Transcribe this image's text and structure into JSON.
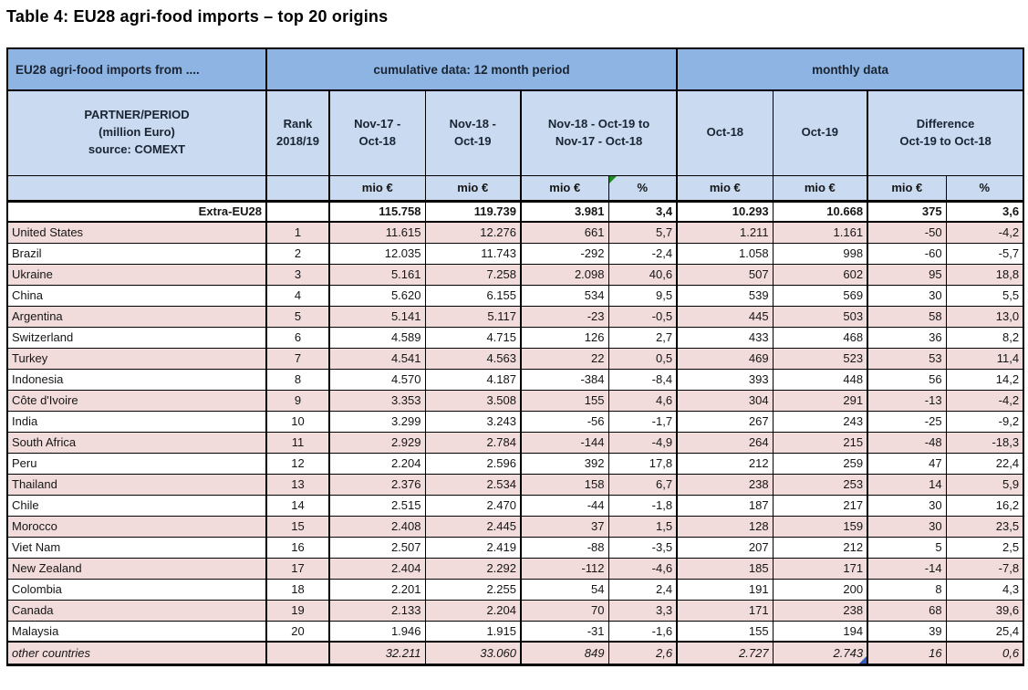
{
  "page": {
    "title": "Table 4: EU28 agri-food imports – top 20 origins"
  },
  "colors": {
    "band_blue": "#8db4e2",
    "light_blue": "#c9daf1",
    "row_pink": "#f2dcdb",
    "flag_green": "#1f8a1f",
    "flag_blue": "#2f5cbf"
  },
  "table": {
    "header": {
      "corner": "EU28 agri-food imports from ....",
      "cumulative_group": "cumulative data: 12 month period",
      "monthly_group": "monthly data",
      "partner": "PARTNER/PERIOD\n(million Euro)\nsource: COMEXT",
      "rank": "Rank\n2018/19",
      "period_1": "Nov-17 -\nOct-18",
      "period_2": "Nov-18 -\nOct-19",
      "period_diff": "Nov-18 - Oct-19 to\nNov-17 - Oct-18",
      "month_1": "Oct-18",
      "month_2": "Oct-19",
      "month_diff": "Difference\nOct-19 to Oct-18"
    },
    "units": [
      "mio €",
      "mio €",
      "mio €",
      "%",
      "mio €",
      "mio €",
      "mio €",
      "%"
    ],
    "flags": {
      "units_green_triangle_col": 3,
      "blue_triangle_row_partner": "other countries",
      "blue_triangle_col": 5
    },
    "rows": [
      {
        "partner": "Extra-EU28",
        "rank": "",
        "values": [
          "115.758",
          "119.739",
          "3.981",
          "3,4",
          "10.293",
          "10.668",
          "375",
          "3,6"
        ],
        "style": "total"
      },
      {
        "partner": "United States",
        "rank": "1",
        "values": [
          "11.615",
          "12.276",
          "661",
          "5,7",
          "1.211",
          "1.161",
          "-50",
          "-4,2"
        ],
        "style": "pink"
      },
      {
        "partner": "Brazil",
        "rank": "2",
        "values": [
          "12.035",
          "11.743",
          "-292",
          "-2,4",
          "1.058",
          "998",
          "-60",
          "-5,7"
        ],
        "style": "white"
      },
      {
        "partner": "Ukraine",
        "rank": "3",
        "values": [
          "5.161",
          "7.258",
          "2.098",
          "40,6",
          "507",
          "602",
          "95",
          "18,8"
        ],
        "style": "pink"
      },
      {
        "partner": "China",
        "rank": "4",
        "values": [
          "5.620",
          "6.155",
          "534",
          "9,5",
          "539",
          "569",
          "30",
          "5,5"
        ],
        "style": "white"
      },
      {
        "partner": "Argentina",
        "rank": "5",
        "values": [
          "5.141",
          "5.117",
          "-23",
          "-0,5",
          "445",
          "503",
          "58",
          "13,0"
        ],
        "style": "pink"
      },
      {
        "partner": "Switzerland",
        "rank": "6",
        "values": [
          "4.589",
          "4.715",
          "126",
          "2,7",
          "433",
          "468",
          "36",
          "8,2"
        ],
        "style": "white"
      },
      {
        "partner": "Turkey",
        "rank": "7",
        "values": [
          "4.541",
          "4.563",
          "22",
          "0,5",
          "469",
          "523",
          "53",
          "11,4"
        ],
        "style": "pink"
      },
      {
        "partner": "Indonesia",
        "rank": "8",
        "values": [
          "4.570",
          "4.187",
          "-384",
          "-8,4",
          "393",
          "448",
          "56",
          "14,2"
        ],
        "style": "white"
      },
      {
        "partner": "Côte d'Ivoire",
        "rank": "9",
        "values": [
          "3.353",
          "3.508",
          "155",
          "4,6",
          "304",
          "291",
          "-13",
          "-4,2"
        ],
        "style": "pink"
      },
      {
        "partner": "India",
        "rank": "10",
        "values": [
          "3.299",
          "3.243",
          "-56",
          "-1,7",
          "267",
          "243",
          "-25",
          "-9,2"
        ],
        "style": "white"
      },
      {
        "partner": "South Africa",
        "rank": "11",
        "values": [
          "2.929",
          "2.784",
          "-144",
          "-4,9",
          "264",
          "215",
          "-48",
          "-18,3"
        ],
        "style": "pink"
      },
      {
        "partner": "Peru",
        "rank": "12",
        "values": [
          "2.204",
          "2.596",
          "392",
          "17,8",
          "212",
          "259",
          "47",
          "22,4"
        ],
        "style": "white"
      },
      {
        "partner": "Thailand",
        "rank": "13",
        "values": [
          "2.376",
          "2.534",
          "158",
          "6,7",
          "238",
          "253",
          "14",
          "5,9"
        ],
        "style": "pink"
      },
      {
        "partner": "Chile",
        "rank": "14",
        "values": [
          "2.515",
          "2.470",
          "-44",
          "-1,8",
          "187",
          "217",
          "30",
          "16,2"
        ],
        "style": "white"
      },
      {
        "partner": "Morocco",
        "rank": "15",
        "values": [
          "2.408",
          "2.445",
          "37",
          "1,5",
          "128",
          "159",
          "30",
          "23,5"
        ],
        "style": "pink"
      },
      {
        "partner": "Viet Nam",
        "rank": "16",
        "values": [
          "2.507",
          "2.419",
          "-88",
          "-3,5",
          "207",
          "212",
          "5",
          "2,5"
        ],
        "style": "white"
      },
      {
        "partner": "New Zealand",
        "rank": "17",
        "values": [
          "2.404",
          "2.292",
          "-112",
          "-4,6",
          "185",
          "171",
          "-14",
          "-7,8"
        ],
        "style": "pink"
      },
      {
        "partner": "Colombia",
        "rank": "18",
        "values": [
          "2.201",
          "2.255",
          "54",
          "2,4",
          "191",
          "200",
          "8",
          "4,3"
        ],
        "style": "white"
      },
      {
        "partner": "Canada",
        "rank": "19",
        "values": [
          "2.133",
          "2.204",
          "70",
          "3,3",
          "171",
          "238",
          "68",
          "39,6"
        ],
        "style": "pink"
      },
      {
        "partner": "Malaysia",
        "rank": "20",
        "values": [
          "1.946",
          "1.915",
          "-31",
          "-1,6",
          "155",
          "194",
          "39",
          "25,4"
        ],
        "style": "white"
      },
      {
        "partner": "other countries",
        "rank": "",
        "values": [
          "32.211",
          "33.060",
          "849",
          "2,6",
          "2.727",
          "2.743",
          "16",
          "0,6"
        ],
        "style": "other"
      }
    ]
  }
}
